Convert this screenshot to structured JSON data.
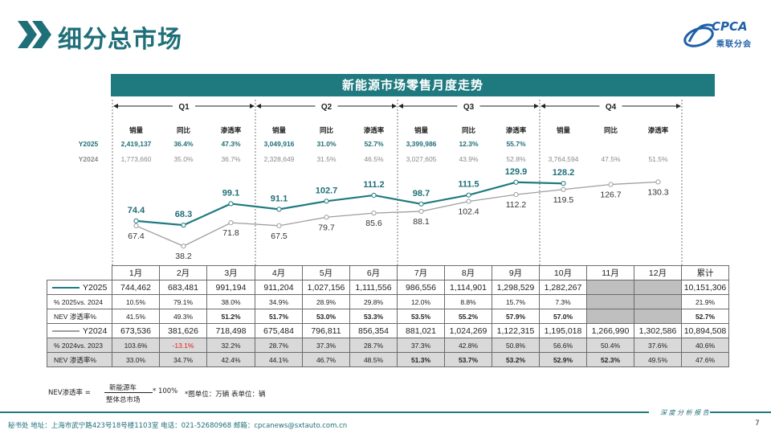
{
  "header": {
    "title": "细分总市场",
    "logo_text": "CPCA",
    "logo_sub": "乘联分会"
  },
  "chart_data": {
    "type": "line",
    "title": "新能源市场零售月度走势",
    "categories": [
      "1月",
      "2月",
      "3月",
      "4月",
      "5月",
      "6月",
      "7月",
      "8月",
      "9月",
      "10月",
      "11月",
      "12月"
    ],
    "series": [
      {
        "name": "Y2025",
        "values": [
          74.4,
          68.3,
          99.1,
          91.1,
          102.7,
          111.2,
          98.7,
          111.5,
          129.9,
          128.2,
          null,
          null
        ],
        "color": "#1f7a80"
      },
      {
        "name": "Y2024",
        "values": [
          67.4,
          38.2,
          71.8,
          67.5,
          79.7,
          85.6,
          88.1,
          102.4,
          112.2,
          119.5,
          126.7,
          130.3
        ],
        "color": "#9e9e9e"
      }
    ],
    "ylim": [
      20,
      140
    ]
  },
  "quarters": {
    "labels": [
      "Q1",
      "Q2",
      "Q3",
      "Q4"
    ],
    "col_labels": [
      "销量",
      "同比",
      "渗透率"
    ],
    "rows": [
      {
        "name": "Y2025",
        "cells": [
          "2,419,137",
          "36.4%",
          "47.3%",
          "3,049,916",
          "31.0%",
          "52.7%",
          "3,399,986",
          "12.3%",
          "55.7%"
        ]
      },
      {
        "name": "Y2024",
        "cells": [
          "1,773,660",
          "35.0%",
          "36.7%",
          "2,328,649",
          "31.5%",
          "46.5%",
          "3,027,605",
          "43.9%",
          "52.8%",
          "3,764,594",
          "47.5%",
          "51.5%"
        ]
      }
    ]
  },
  "table": {
    "months": [
      "1月",
      "2月",
      "3月",
      "4月",
      "5月",
      "6月",
      "7月",
      "8月",
      "9月",
      "10月",
      "11月",
      "12月"
    ],
    "total_label": "累计",
    "rows": [
      {
        "label": "Y2025",
        "cells": [
          "744,462",
          "683,481",
          "991,194",
          "911,204",
          "1,027,156",
          "1,111,556",
          "986,556",
          "1,114,901",
          "1,298,529",
          "1,282,267",
          "",
          "",
          "10,151,306"
        ]
      },
      {
        "label": "% 2025vs. 2024",
        "cells": [
          "10.5%",
          "79.1%",
          "38.0%",
          "34.9%",
          "28.9%",
          "29.8%",
          "12.0%",
          "8.8%",
          "15.7%",
          "7.3%",
          "",
          "",
          "21.9%"
        ]
      },
      {
        "label": "NEV 渗透率%",
        "cells": [
          "41.5%",
          "49.3%",
          "51.2%",
          "51.7%",
          "53.0%",
          "53.3%",
          "53.5%",
          "55.2%",
          "57.9%",
          "57.0%",
          "",
          "",
          "52.7%"
        ]
      },
      {
        "label": "Y2024",
        "cells": [
          "673,536",
          "381,626",
          "718,498",
          "675,484",
          "796,811",
          "856,354",
          "881,021",
          "1,024,269",
          "1,122,315",
          "1,195,018",
          "1,266,990",
          "1,302,586",
          "10,894,508"
        ]
      },
      {
        "label": "% 2024vs. 2023",
        "cells": [
          "103.6%",
          "-13.1%",
          "32.2%",
          "28.7%",
          "37.3%",
          "28.7%",
          "37.3%",
          "42.8%",
          "50.8%",
          "56.6%",
          "50.4%",
          "37.6%",
          "40.6%"
        ]
      },
      {
        "label": "NEV 渗透率%",
        "cells": [
          "33.0%",
          "34.7%",
          "42.4%",
          "44.1%",
          "46.7%",
          "48.5%",
          "51.3%",
          "53.7%",
          "53.2%",
          "52.9%",
          "52.3%",
          "49.5%",
          "47.6%"
        ]
      }
    ]
  },
  "formula": {
    "prefix": "NEV渗透率 =",
    "numerator": "新能源车",
    "denominator": "整体总市场",
    "suffix": "* 100%",
    "note": "*图单位：万辆   表单位：辆"
  },
  "footer": {
    "address": "秘书处  地址：上海市武宁路423号18号楼1103室  电话：021-52680968  邮箱：cpcanews@sxtauto.com.cn",
    "tag": "深 度 分 析 报 告",
    "page": "7"
  },
  "colors": {
    "accent": "#1f7a80",
    "gray": "#9e9e9e",
    "negative": "#e0201c"
  }
}
